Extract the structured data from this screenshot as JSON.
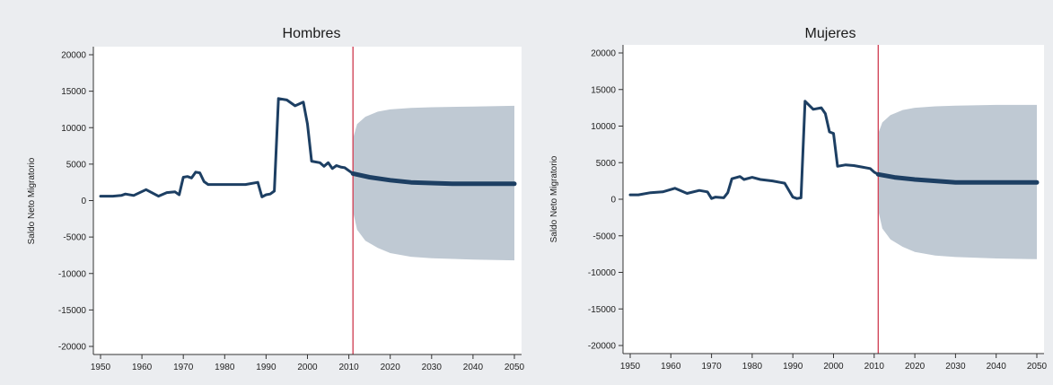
{
  "chart_data": [
    {
      "type": "line",
      "title": "Hombres",
      "xlabel": "",
      "ylabel": "Saldo Neto Migratorio",
      "xlim": [
        1950,
        2050
      ],
      "ylim": [
        -20000,
        20000
      ],
      "x_ticks": [
        1950,
        1960,
        1970,
        1980,
        1990,
        2000,
        2010,
        2020,
        2030,
        2040,
        2050
      ],
      "y_ticks": [
        -20000,
        -15000,
        -10000,
        -5000,
        0,
        5000,
        10000,
        15000,
        20000
      ],
      "grid": false,
      "forecast_start": 2011,
      "series": [
        {
          "values_x": [
            1950,
            1953,
            1955,
            1956,
            1958,
            1961,
            1964,
            1966,
            1968,
            1969,
            1970,
            1971,
            1972,
            1973,
            1974,
            1975,
            1976,
            1980,
            1985,
            1988,
            1989,
            1990,
            1991,
            1992,
            1993,
            1995,
            1997,
            1999,
            2000,
            2001,
            2003,
            2004,
            2005,
            2006,
            2007,
            2008,
            2009,
            2010,
            2011
          ],
          "values_y": [
            600,
            600,
            700,
            900,
            700,
            1500,
            600,
            1100,
            1200,
            800,
            3200,
            3300,
            3100,
            3900,
            3800,
            2600,
            2200,
            2200,
            2200,
            2500,
            500,
            800,
            900,
            1300,
            14000,
            13800,
            13000,
            13500,
            10500,
            5400,
            5200,
            4700,
            5200,
            4400,
            4800,
            4600,
            4500,
            4100,
            3700
          ]
        },
        {
          "name": "forecast",
          "values_x": [
            2011,
            2015,
            2020,
            2025,
            2030,
            2035,
            2040,
            2045,
            2050
          ],
          "values_y": [
            3700,
            3200,
            2800,
            2500,
            2400,
            2300,
            2300,
            2300,
            2300
          ]
        }
      ],
      "band": {
        "x": [
          2011,
          2012,
          2014,
          2017,
          2020,
          2025,
          2030,
          2040,
          2050
        ],
        "upper": [
          8500,
          10500,
          11500,
          12200,
          12500,
          12700,
          12800,
          12900,
          13000
        ],
        "lower": [
          -1500,
          -4000,
          -5500,
          -6500,
          -7200,
          -7700,
          -7900,
          -8100,
          -8200
        ]
      },
      "colors": {
        "line": "#1d3f63",
        "band": "#bfc9d3",
        "vline": "#d2465a"
      }
    },
    {
      "type": "line",
      "title": "Mujeres",
      "xlabel": "",
      "ylabel": "Saldo Neto Migratorio",
      "xlim": [
        1950,
        2050
      ],
      "ylim": [
        -20000,
        20000
      ],
      "x_ticks": [
        1950,
        1960,
        1970,
        1980,
        1990,
        2000,
        2010,
        2020,
        2030,
        2040,
        2050
      ],
      "y_ticks": [
        -20000,
        -15000,
        -10000,
        -5000,
        0,
        5000,
        10000,
        15000,
        20000
      ],
      "grid": false,
      "forecast_start": 2011,
      "series": [
        {
          "values_x": [
            1950,
            1952,
            1955,
            1958,
            1961,
            1964,
            1967,
            1969,
            1970,
            1971,
            1973,
            1974,
            1975,
            1977,
            1978,
            1980,
            1982,
            1985,
            1987,
            1988,
            1990,
            1991,
            1992,
            1993,
            1995,
            1997,
            1998,
            1999,
            2000,
            2001,
            2003,
            2005,
            2007,
            2009,
            2010,
            2011
          ],
          "values_y": [
            600,
            600,
            900,
            1000,
            1500,
            800,
            1200,
            1000,
            100,
            300,
            200,
            900,
            2800,
            3100,
            2700,
            3000,
            2700,
            2500,
            2300,
            2200,
            300,
            100,
            200,
            13400,
            12300,
            12500,
            11700,
            9200,
            9000,
            4500,
            4700,
            4600,
            4400,
            4200,
            3700,
            3400
          ]
        },
        {
          "name": "forecast",
          "values_x": [
            2011,
            2015,
            2020,
            2025,
            2030,
            2035,
            2040,
            2045,
            2050
          ],
          "values_y": [
            3400,
            3000,
            2700,
            2500,
            2300,
            2300,
            2300,
            2300,
            2300
          ]
        }
      ],
      "band": {
        "x": [
          2011,
          2012,
          2014,
          2017,
          2020,
          2025,
          2030,
          2040,
          2050
        ],
        "upper": [
          9000,
          10500,
          11500,
          12200,
          12500,
          12700,
          12800,
          12900,
          12900
        ],
        "lower": [
          -1500,
          -4000,
          -5500,
          -6500,
          -7200,
          -7700,
          -7900,
          -8100,
          -8200
        ]
      },
      "colors": {
        "line": "#1d3f63",
        "band": "#bfc9d3",
        "vline": "#d2465a"
      }
    }
  ]
}
